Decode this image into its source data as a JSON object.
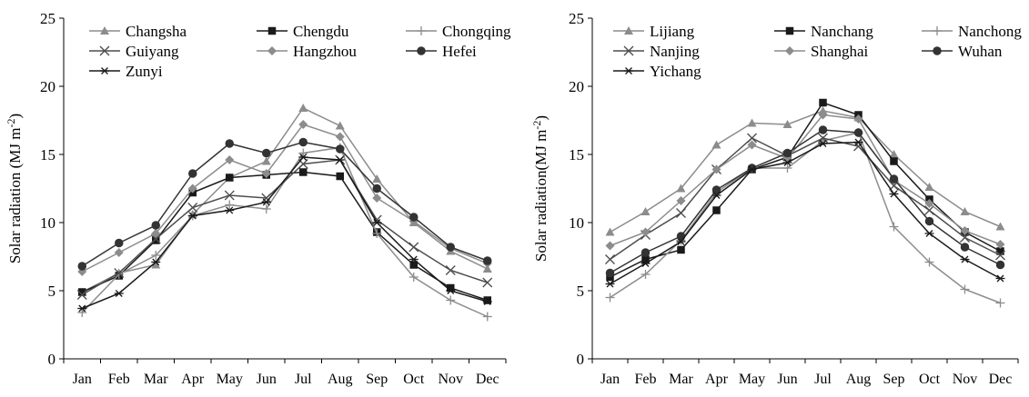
{
  "chart_data": [
    {
      "type": "line",
      "categories": [
        "Jan",
        "Feb",
        "Mar",
        "Apr",
        "May",
        "Jun",
        "Jul",
        "Aug",
        "Sep",
        "Oct",
        "Nov",
        "Dec"
      ],
      "ylabel_main": "Solar radiation (MJ m",
      "ylabel_sup": "-2",
      "ylabel_close": ")",
      "ylim": [
        0,
        25
      ],
      "yticks": [
        0,
        5,
        10,
        15,
        20,
        25
      ],
      "grid": false,
      "legend_position": "top",
      "series": [
        {
          "name": "Changsha",
          "marker": "triangle",
          "color": "#8c8c8c",
          "values": [
            4.9,
            6.3,
            6.9,
            10.6,
            13.3,
            14.5,
            18.4,
            17.1,
            13.2,
            10.0,
            7.9,
            6.6
          ]
        },
        {
          "name": "Chengdu",
          "marker": "square",
          "color": "#1a1a1a",
          "values": [
            4.9,
            6.1,
            8.7,
            12.2,
            13.3,
            13.5,
            13.7,
            13.4,
            9.3,
            6.9,
            5.2,
            4.3
          ]
        },
        {
          "name": "Chongqing",
          "marker": "plus",
          "color": "#8c8c8c",
          "values": [
            3.4,
            6.2,
            7.6,
            10.5,
            11.3,
            11.0,
            15.1,
            15.5,
            9.2,
            6.0,
            4.3,
            3.1
          ]
        },
        {
          "name": "Guiyang",
          "marker": "x",
          "color": "#4d4d4d",
          "values": [
            4.7,
            6.3,
            8.8,
            11.1,
            12.0,
            11.8,
            14.3,
            14.6,
            10.2,
            8.2,
            6.5,
            5.6
          ]
        },
        {
          "name": "Hangzhou",
          "marker": "diamond",
          "color": "#8c8c8c",
          "values": [
            6.4,
            7.8,
            9.2,
            12.5,
            14.6,
            13.6,
            17.2,
            16.3,
            11.8,
            10.1,
            8.1,
            7.0
          ]
        },
        {
          "name": "Hefei",
          "marker": "circle",
          "color": "#333333",
          "values": [
            6.8,
            8.5,
            9.8,
            13.6,
            15.8,
            15.1,
            15.9,
            15.4,
            12.5,
            10.4,
            8.2,
            7.2
          ]
        },
        {
          "name": "Zunyi",
          "marker": "asterisk",
          "color": "#1a1a1a",
          "values": [
            3.7,
            4.8,
            7.1,
            10.5,
            10.9,
            11.5,
            14.8,
            14.6,
            10.0,
            7.3,
            5.0,
            4.2
          ]
        }
      ]
    },
    {
      "type": "line",
      "categories": [
        "Jan",
        "Feb",
        "Mar",
        "Apr",
        "May",
        "Jun",
        "Jul",
        "Aug",
        "Sep",
        "Oct",
        "Nov",
        "Dec"
      ],
      "ylabel_main": "Solar radiation(MJ m",
      "ylabel_sup": "-2",
      "ylabel_close": ")",
      "ylim": [
        0,
        25
      ],
      "yticks": [
        0,
        5,
        10,
        15,
        20,
        25
      ],
      "grid": false,
      "legend_position": "top",
      "series": [
        {
          "name": "Lijiang",
          "marker": "triangle",
          "color": "#8c8c8c",
          "values": [
            9.3,
            10.8,
            12.5,
            15.7,
            17.3,
            17.2,
            18.2,
            17.7,
            15.0,
            12.6,
            10.8,
            9.7
          ]
        },
        {
          "name": "Nanchang",
          "marker": "square",
          "color": "#1a1a1a",
          "values": [
            6.0,
            7.3,
            8.0,
            10.9,
            13.9,
            14.8,
            18.8,
            17.9,
            14.5,
            11.7,
            9.3,
            7.9
          ]
        },
        {
          "name": "Nanchong",
          "marker": "plus",
          "color": "#8c8c8c",
          "values": [
            4.5,
            6.2,
            8.7,
            12.2,
            14.0,
            14.0,
            16.0,
            16.6,
            9.7,
            7.1,
            5.1,
            4.1
          ]
        },
        {
          "name": "Nanjing",
          "marker": "x",
          "color": "#4d4d4d",
          "values": [
            7.3,
            9.1,
            10.7,
            13.9,
            16.2,
            14.9,
            16.2,
            15.6,
            12.7,
            10.9,
            8.9,
            7.6
          ]
        },
        {
          "name": "Shanghai",
          "marker": "diamond",
          "color": "#8c8c8c",
          "values": [
            8.3,
            9.3,
            11.6,
            13.9,
            15.7,
            14.7,
            17.9,
            17.6,
            13.1,
            11.4,
            9.4,
            8.4
          ]
        },
        {
          "name": "Wuhan",
          "marker": "circle",
          "color": "#333333",
          "values": [
            6.3,
            7.8,
            9.0,
            12.4,
            14.0,
            15.1,
            16.8,
            16.6,
            13.2,
            10.1,
            8.2,
            6.9
          ]
        },
        {
          "name": "Yichang",
          "marker": "asterisk",
          "color": "#1a1a1a",
          "values": [
            5.5,
            7.0,
            8.6,
            12.0,
            13.9,
            14.4,
            15.8,
            15.9,
            12.1,
            9.2,
            7.3,
            5.9
          ]
        }
      ]
    }
  ]
}
